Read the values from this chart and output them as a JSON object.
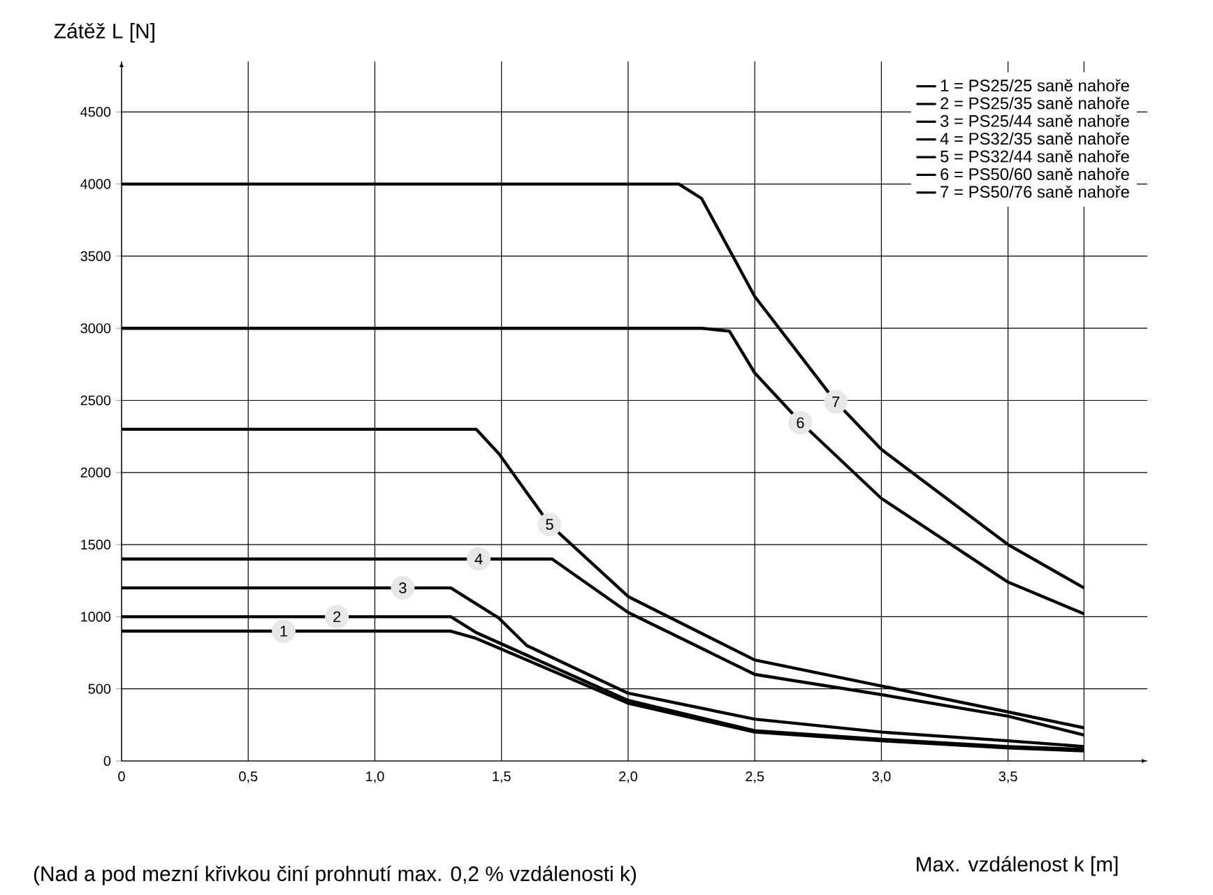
{
  "chart_data": {
    "type": "line",
    "xlabel": "Max. vzdálenost k [m]",
    "ylabel": "Zátěž L [N]",
    "xlim": [
      0,
      4.05
    ],
    "ylim": [
      0,
      4850
    ],
    "xticks": [
      0,
      {
        "value": 0.5,
        "label": "0,5"
      },
      {
        "value": 1.0,
        "label": "1,0"
      },
      {
        "value": 1.5,
        "label": "1,5"
      },
      {
        "value": 2.0,
        "label": "2,0"
      },
      {
        "value": 2.5,
        "label": "2,5"
      },
      {
        "value": 3.0,
        "label": "3,0"
      },
      {
        "value": 3.5,
        "label": "3,5"
      },
      {
        "value": 3.8,
        "label": null
      }
    ],
    "yticks": [
      0,
      500,
      1000,
      1500,
      2000,
      2500,
      3000,
      3500,
      4000,
      4500
    ],
    "grid": true,
    "legend": "top right",
    "marker": "none",
    "line_style": "solid",
    "series": [
      {
        "name": "1 = PS25/25 saně nahoře",
        "color": "#000000",
        "x": [
          0,
          1.3,
          1.4,
          2.0,
          2.5,
          3.0,
          3.5,
          3.8
        ],
        "values": [
          900,
          900,
          850,
          400,
          200,
          140,
          90,
          70
        ]
      },
      {
        "name": "2 = PS25/35 saně nahoře",
        "color": "#000000",
        "x": [
          0,
          1.3,
          1.4,
          2.0,
          2.5,
          3.0,
          3.5,
          3.8
        ],
        "values": [
          1000,
          1000,
          890,
          420,
          210,
          150,
          100,
          80
        ]
      },
      {
        "name": "3 = PS25/44 saně nahoře",
        "color": "#000000",
        "x": [
          0,
          1.3,
          1.49,
          1.6,
          2.0,
          2.5,
          3.0,
          3.5,
          3.8
        ],
        "values": [
          1200,
          1200,
          990,
          800,
          470,
          290,
          200,
          140,
          100
        ]
      },
      {
        "name": "4 = PS32/35 saně nahoře",
        "color": "#000000",
        "x": [
          0,
          1.7,
          2.0,
          2.5,
          3.0,
          3.5,
          3.8
        ],
        "values": [
          1400,
          1400,
          1030,
          600,
          460,
          310,
          180
        ]
      },
      {
        "name": "5 = PS32/44 saně nahoře",
        "color": "#000000",
        "x": [
          0,
          1.4,
          1.49,
          1.69,
          2.0,
          2.5,
          3.0,
          3.5,
          3.8
        ],
        "values": [
          2300,
          2300,
          2130,
          1640,
          1140,
          700,
          520,
          340,
          230
        ]
      },
      {
        "name": "6 = PS50/60 saně nahoře",
        "color": "#000000",
        "x": [
          0,
          2.29,
          2.4,
          2.5,
          2.68,
          3.0,
          3.5,
          3.8
        ],
        "values": [
          3000,
          3000,
          2980,
          2690,
          2350,
          1820,
          1240,
          1020
        ]
      },
      {
        "name": "7 = PS50/76 saně nahoře",
        "color": "#000000",
        "x": [
          0,
          2.2,
          2.29,
          2.5,
          2.82,
          3.0,
          3.5,
          3.8
        ],
        "values": [
          4000,
          4000,
          3900,
          3220,
          2490,
          2160,
          1500,
          1200
        ]
      }
    ],
    "annotations": [
      {
        "text": "1",
        "x": 0.64,
        "y": 900
      },
      {
        "text": "2",
        "x": 0.85,
        "y": 1000
      },
      {
        "text": "3",
        "x": 1.11,
        "y": 1200
      },
      {
        "text": "4",
        "x": 1.41,
        "y": 1400
      },
      {
        "text": "5",
        "x": 1.69,
        "y": 1640
      },
      {
        "text": "6",
        "x": 2.68,
        "y": 2345
      },
      {
        "text": "7",
        "x": 2.82,
        "y": 2490
      },
      "(Nad a pod mezní křivkou činí prohnutí max. 0,2 % vzdálenosti k)"
    ]
  }
}
